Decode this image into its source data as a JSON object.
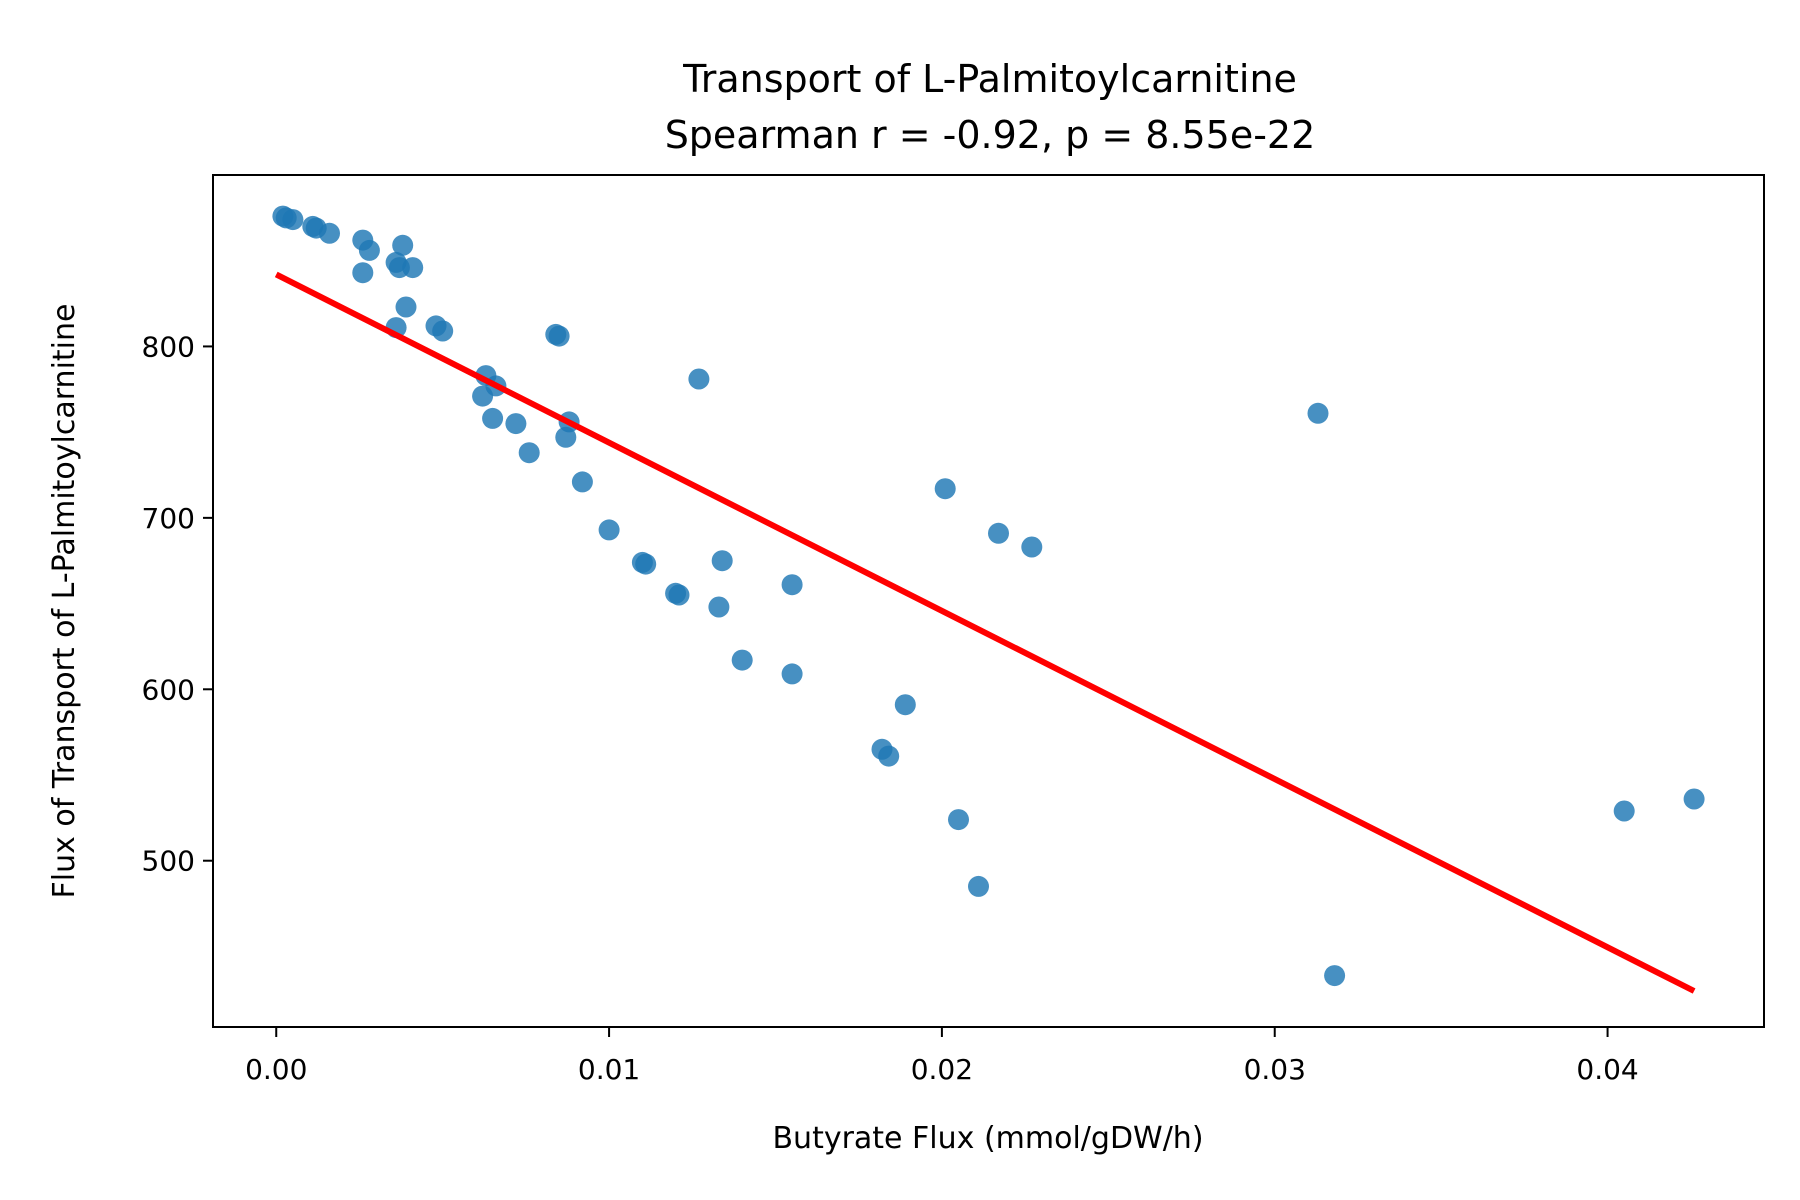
{
  "chart_data": {
    "type": "scatter",
    "title": "Transport of L-Palmitoylcarnitine",
    "subtitle": "Spearman r = -0.92, p = 8.55e-22",
    "xlabel": "Butyrate Flux (mmol/gDW/h)",
    "ylabel": "Flux of Transport of L-Palmitoylcarnitine",
    "xlim": [
      -0.0019,
      0.0447
    ],
    "ylim": [
      403,
      900
    ],
    "xticks": [
      0.0,
      0.01,
      0.02,
      0.03,
      0.04
    ],
    "xtick_labels": [
      "0.00",
      "0.01",
      "0.02",
      "0.03",
      "0.04"
    ],
    "yticks": [
      500,
      600,
      700,
      800
    ],
    "ytick_labels": [
      "500",
      "600",
      "700",
      "800"
    ],
    "grid": false,
    "point_color": "#1f77b4",
    "line_color": "#ff0000",
    "trendline": {
      "x": [
        0.0,
        0.0426
      ],
      "y": [
        842,
        424
      ]
    },
    "points": [
      {
        "x": 0.0002,
        "y": 876
      },
      {
        "x": 0.0003,
        "y": 875
      },
      {
        "x": 0.0005,
        "y": 874
      },
      {
        "x": 0.0011,
        "y": 870
      },
      {
        "x": 0.0012,
        "y": 869
      },
      {
        "x": 0.0016,
        "y": 866
      },
      {
        "x": 0.0026,
        "y": 862
      },
      {
        "x": 0.0028,
        "y": 856
      },
      {
        "x": 0.0026,
        "y": 843
      },
      {
        "x": 0.0038,
        "y": 859
      },
      {
        "x": 0.0036,
        "y": 849
      },
      {
        "x": 0.0037,
        "y": 846
      },
      {
        "x": 0.0041,
        "y": 846
      },
      {
        "x": 0.0039,
        "y": 823
      },
      {
        "x": 0.0036,
        "y": 811
      },
      {
        "x": 0.0048,
        "y": 812
      },
      {
        "x": 0.005,
        "y": 809
      },
      {
        "x": 0.0084,
        "y": 807
      },
      {
        "x": 0.0085,
        "y": 806
      },
      {
        "x": 0.0127,
        "y": 781
      },
      {
        "x": 0.0063,
        "y": 783
      },
      {
        "x": 0.0066,
        "y": 777
      },
      {
        "x": 0.0062,
        "y": 771
      },
      {
        "x": 0.0065,
        "y": 758
      },
      {
        "x": 0.0072,
        "y": 755
      },
      {
        "x": 0.0088,
        "y": 756
      },
      {
        "x": 0.0087,
        "y": 747
      },
      {
        "x": 0.0076,
        "y": 738
      },
      {
        "x": 0.0092,
        "y": 721
      },
      {
        "x": 0.01,
        "y": 693
      },
      {
        "x": 0.011,
        "y": 674
      },
      {
        "x": 0.0111,
        "y": 673
      },
      {
        "x": 0.012,
        "y": 656
      },
      {
        "x": 0.0121,
        "y": 655
      },
      {
        "x": 0.0134,
        "y": 675
      },
      {
        "x": 0.0133,
        "y": 648
      },
      {
        "x": 0.0155,
        "y": 661
      },
      {
        "x": 0.014,
        "y": 617
      },
      {
        "x": 0.0155,
        "y": 609
      },
      {
        "x": 0.0189,
        "y": 591
      },
      {
        "x": 0.0182,
        "y": 565
      },
      {
        "x": 0.0184,
        "y": 561
      },
      {
        "x": 0.0201,
        "y": 717
      },
      {
        "x": 0.0217,
        "y": 691
      },
      {
        "x": 0.0227,
        "y": 683
      },
      {
        "x": 0.0205,
        "y": 524
      },
      {
        "x": 0.0211,
        "y": 485
      },
      {
        "x": 0.0313,
        "y": 761
      },
      {
        "x": 0.0318,
        "y": 433
      },
      {
        "x": 0.0405,
        "y": 529
      },
      {
        "x": 0.0426,
        "y": 536
      }
    ]
  }
}
